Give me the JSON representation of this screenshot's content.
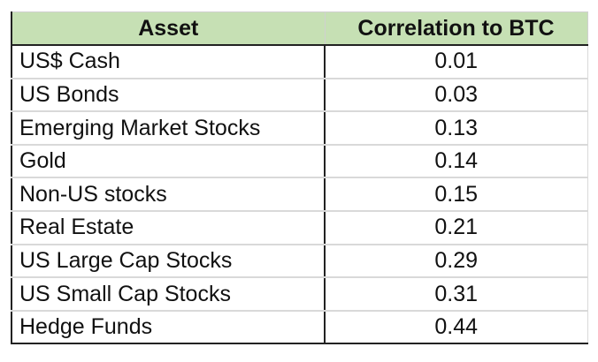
{
  "table": {
    "headers": {
      "asset": "Asset",
      "correlation": "Correlation to BTC"
    },
    "rows": [
      {
        "asset": "US$ Cash",
        "correlation": "0.01"
      },
      {
        "asset": "US Bonds",
        "correlation": "0.03"
      },
      {
        "asset": "Emerging Market Stocks",
        "correlation": "0.13"
      },
      {
        "asset": "Gold",
        "correlation": "0.14"
      },
      {
        "asset": "Non-US stocks",
        "correlation": "0.15"
      },
      {
        "asset": "Real Estate",
        "correlation": "0.21"
      },
      {
        "asset": "US Large Cap Stocks",
        "correlation": "0.29"
      },
      {
        "asset": "US Small Cap Stocks",
        "correlation": "0.31"
      },
      {
        "asset": "Hedge Funds",
        "correlation": "0.44"
      }
    ]
  },
  "colors": {
    "header_fill": "#c6e0b4",
    "border_dark": "#222222",
    "gridline": "#d9d9d9"
  }
}
